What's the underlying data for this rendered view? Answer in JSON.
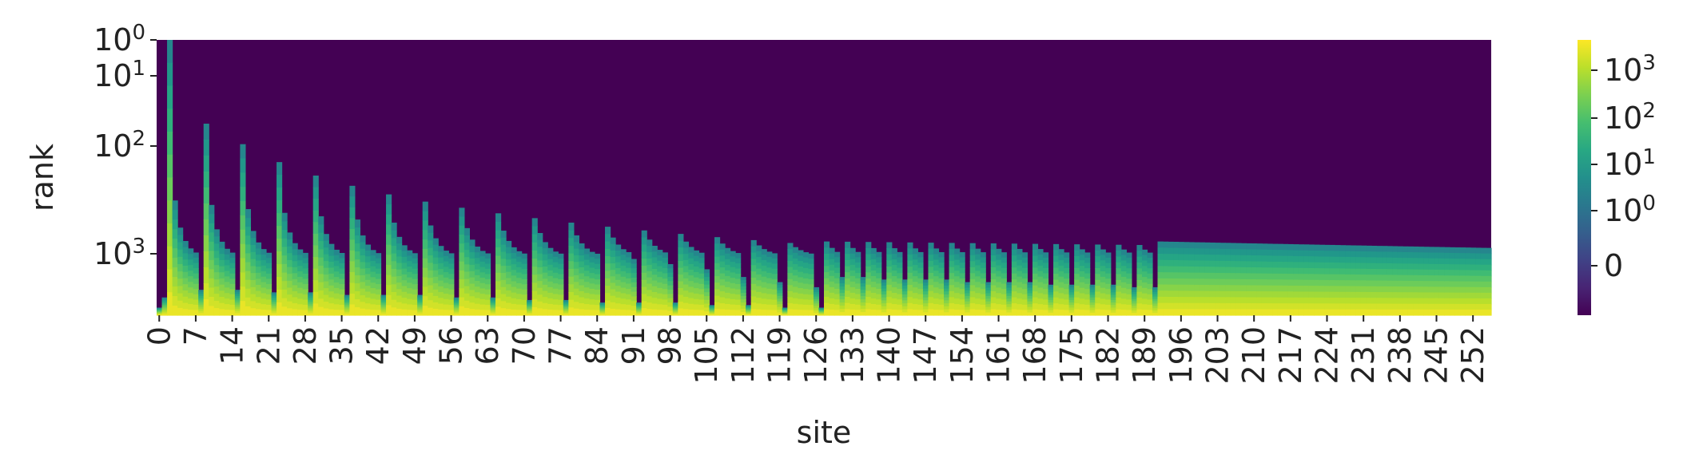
{
  "chart_data": {
    "type": "heatmap",
    "xlabel": "site",
    "ylabel": "rank",
    "colormap": "viridis",
    "x_range": [
      0,
      255
    ],
    "x_tick_labels": [
      "0",
      "7",
      "14",
      "21",
      "28",
      "35",
      "42",
      "49",
      "56",
      "63",
      "70",
      "77",
      "84",
      "91",
      "98",
      "105",
      "112",
      "119",
      "126",
      "133",
      "140",
      "147",
      "154",
      "161",
      "168",
      "175",
      "182",
      "189",
      "196",
      "203",
      "210",
      "217",
      "224",
      "231",
      "238",
      "245",
      "252"
    ],
    "y_scale": "log",
    "y_tick_labels": [
      {
        "base": "10",
        "exp": "0"
      },
      {
        "base": "10",
        "exp": "1"
      },
      {
        "base": "10",
        "exp": "2"
      },
      {
        "base": "10",
        "exp": "3"
      }
    ],
    "colorbar": {
      "scale": "symlog",
      "tick_labels": [
        {
          "base": "10",
          "exp": "3"
        },
        {
          "base": "10",
          "exp": "2"
        },
        {
          "base": "10",
          "exp": "1"
        },
        {
          "base": "10",
          "exp": "0"
        },
        {
          "base": "0",
          "exp": ""
        }
      ]
    },
    "bond_rank_regions": [
      {
        "sites": [
          0,
          2
        ],
        "max_rank": 4,
        "period": 2
      },
      {
        "sites": [
          2,
          128
        ],
        "max_rank": 1024,
        "period": 7
      },
      {
        "sites": [
          128,
          192
        ],
        "max_rank": 256,
        "period": 4
      },
      {
        "sites": [
          192,
          256
        ],
        "max_rank": 256,
        "period": 0
      }
    ]
  }
}
